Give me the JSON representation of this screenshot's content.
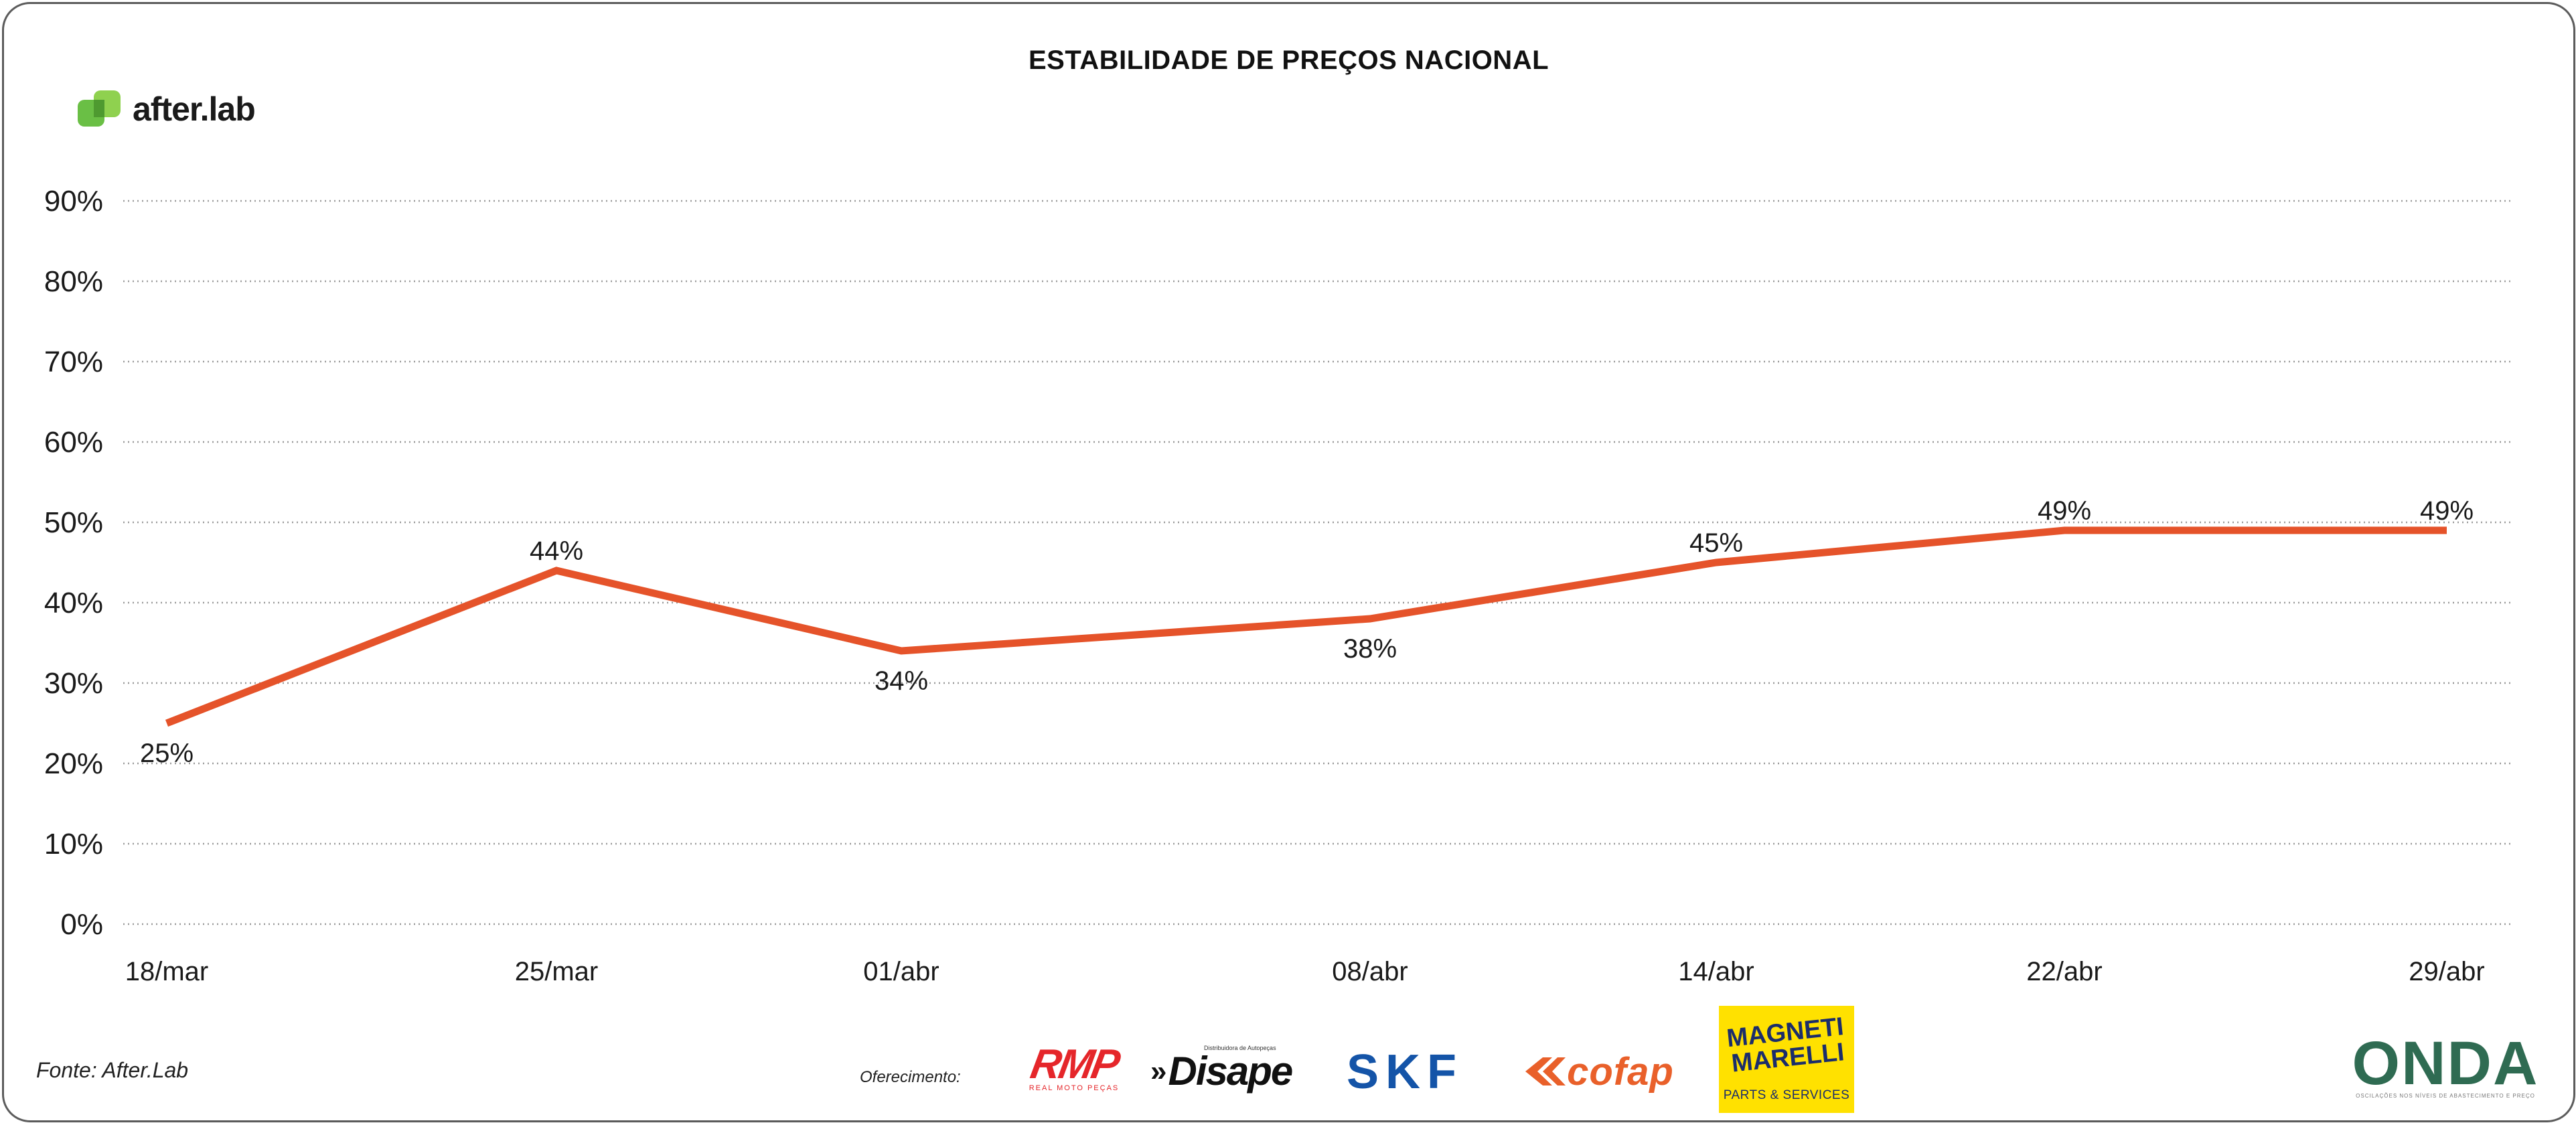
{
  "brand": {
    "name": "after.lab",
    "icon": "after-lab-logo-icon",
    "color": "#6abf45"
  },
  "footer": {
    "source": "Fonte: After.Lab",
    "sponsor_label": "Oferecimento:",
    "sponsors": {
      "rmp": {
        "name": "RMP",
        "tagline": "REAL MOTO PEÇAS"
      },
      "disape": {
        "name": "Disape",
        "tagline": "Distribuidora de Autopeças"
      },
      "skf": {
        "name": "SKF"
      },
      "cofap": {
        "name": "cofap"
      },
      "magneti_marelli": {
        "name": "MAGNETI MARELLI",
        "tagline": "PARTS & SERVICES"
      },
      "onda": {
        "name": "ONDA",
        "tagline": "OSCILAÇÕES NOS NÍVEIS DE ABASTECIMENTO E PREÇO"
      }
    }
  },
  "colors": {
    "line": "#e5532a",
    "grid": "#9a9a9a",
    "text": "#1a1a1a"
  },
  "chart_data": {
    "type": "line",
    "title": "ESTABILIDADE DE PREÇOS NACIONAL",
    "xlabel": "",
    "ylabel": "",
    "categories": [
      "18/mar",
      "25/mar",
      "01/abr",
      "08/abr",
      "14/abr",
      "22/abr",
      "29/abr"
    ],
    "series": [
      {
        "values": [
          25,
          44,
          34,
          38,
          45,
          49,
          49
        ],
        "labels": [
          "25%",
          "44%",
          "34%",
          "38%",
          "45%",
          "49%",
          "49%"
        ]
      }
    ],
    "ylim": [
      0,
      90
    ],
    "yticks": [
      0,
      10,
      20,
      30,
      40,
      50,
      60,
      70,
      80,
      90
    ],
    "ytick_labels": [
      "0%",
      "10%",
      "20%",
      "30%",
      "40%",
      "50%",
      "60%",
      "70%",
      "80%",
      "90%"
    ],
    "grid": true,
    "grid_style": "dotted",
    "legend": "none"
  }
}
